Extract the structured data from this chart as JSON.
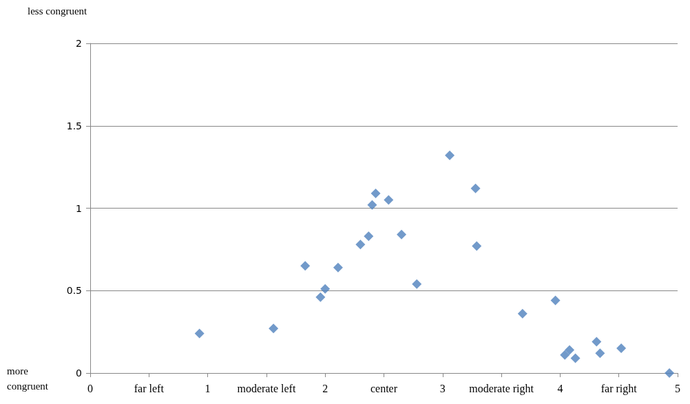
{
  "chart_data": {
    "type": "scatter",
    "marker": "diamond",
    "grid": "y",
    "x": [
      0.93,
      1.56,
      1.83,
      1.96,
      2.0,
      2.11,
      2.3,
      2.37,
      2.4,
      2.43,
      2.54,
      2.65,
      2.78,
      3.06,
      3.28,
      3.29,
      3.68,
      3.96,
      4.04,
      4.08,
      4.13,
      4.31,
      4.34,
      4.52,
      4.93
    ],
    "series": [
      {
        "color": "#4f81bd",
        "values": [
          0.24,
          0.27,
          0.65,
          0.46,
          0.51,
          0.64,
          0.78,
          0.83,
          1.02,
          1.09,
          1.05,
          0.84,
          0.54,
          1.32,
          1.12,
          0.77,
          0.36,
          0.44,
          0.11,
          0.14,
          0.09,
          0.19,
          0.12,
          0.15,
          0.0
        ]
      }
    ],
    "xlim": [
      0,
      5
    ],
    "xticks": [
      0,
      {
        "value": 0.5,
        "label": "far left"
      },
      1,
      {
        "value": 1.5,
        "label": "moderate left"
      },
      2,
      {
        "value": 2.5,
        "label": "center"
      },
      3,
      {
        "value": 3.5,
        "label": "moderate right"
      },
      4,
      {
        "value": 4.5,
        "label": "far right"
      },
      5
    ],
    "ylim": [
      0,
      2
    ],
    "yticks": [
      0,
      0.5,
      1,
      1.5,
      2
    ],
    "annotations": [
      "less congruent",
      "more congruent"
    ]
  }
}
